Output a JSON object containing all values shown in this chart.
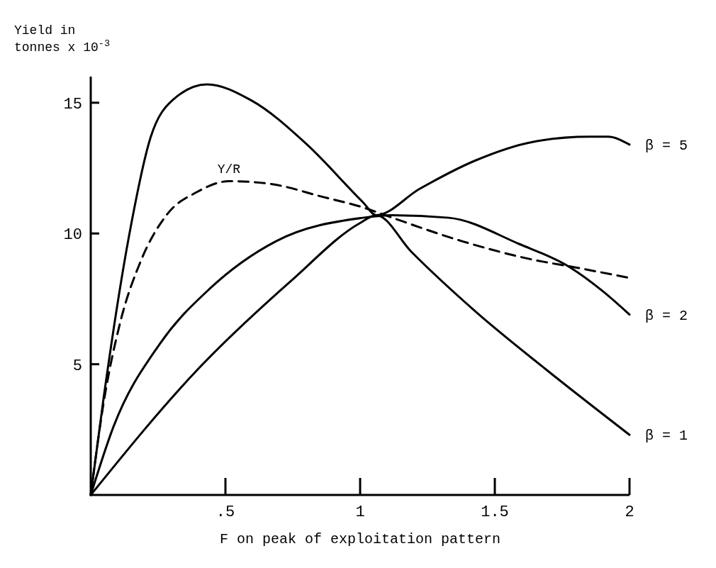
{
  "chart_data": {
    "type": "line",
    "xlabel": "F on peak of exploitation pattern",
    "ylabel": "Yield in\ntonnes x 10$^{-3}$",
    "xlim": [
      0,
      2
    ],
    "xticks": [
      {
        "value": 0.5,
        "label": ".5"
      },
      1,
      1.5,
      2
    ],
    "ylim": [
      0,
      16
    ],
    "yticks": [
      5,
      10,
      15
    ],
    "grid": false,
    "marker": "none",
    "series": [
      {
        "name": "β = 5",
        "color": "#000000",
        "line_style": "solid",
        "x": [
          0,
          0.049,
          0.142,
          0.223,
          0.304,
          0.432,
          0.594,
          0.803,
          1.01,
          1.06,
          1.22,
          1.43,
          1.64,
          1.85,
          1.92,
          2.0
        ],
        "values": [
          0,
          3.8,
          9.9,
          13.7,
          15.1,
          15.7,
          15.1,
          13.4,
          11.2,
          10.7,
          11.7,
          12.8,
          13.5,
          13.7,
          13.7,
          13.4
        ]
      },
      {
        "name": "β = 2",
        "color": "#000000",
        "line_style": "solid",
        "x": [
          0,
          0.084,
          0.258,
          0.443,
          0.687,
          1.01,
          1.12,
          1.33,
          1.59,
          1.78,
          1.9,
          2.0
        ],
        "values": [
          0,
          2.6,
          5.8,
          7.9,
          9.7,
          10.6,
          10.7,
          10.6,
          9.6,
          8.7,
          7.8,
          6.9
        ]
      },
      {
        "name": "β = 1",
        "color": "#000000",
        "line_style": "solid",
        "x": [
          0,
          0.397,
          0.745,
          1.0,
          1.06,
          1.19,
          1.43,
          1.69,
          2.0
        ],
        "values": [
          0,
          4.8,
          8.2,
          10.4,
          10.7,
          9.3,
          7.0,
          4.8,
          2.3
        ]
      },
      {
        "name": "Y/R",
        "color": "#000000",
        "line_style": "dashed",
        "x": [
          0,
          0.049,
          0.107,
          0.188,
          0.281,
          0.397,
          0.513,
          0.664,
          0.861,
          1.01,
          1.12,
          1.38,
          1.64,
          1.8,
          2.0
        ],
        "values": [
          0,
          3.6,
          6.5,
          9.0,
          10.7,
          11.6,
          12.0,
          11.9,
          11.4,
          11.0,
          10.6,
          9.7,
          9.0,
          8.7,
          8.3
        ]
      }
    ]
  }
}
